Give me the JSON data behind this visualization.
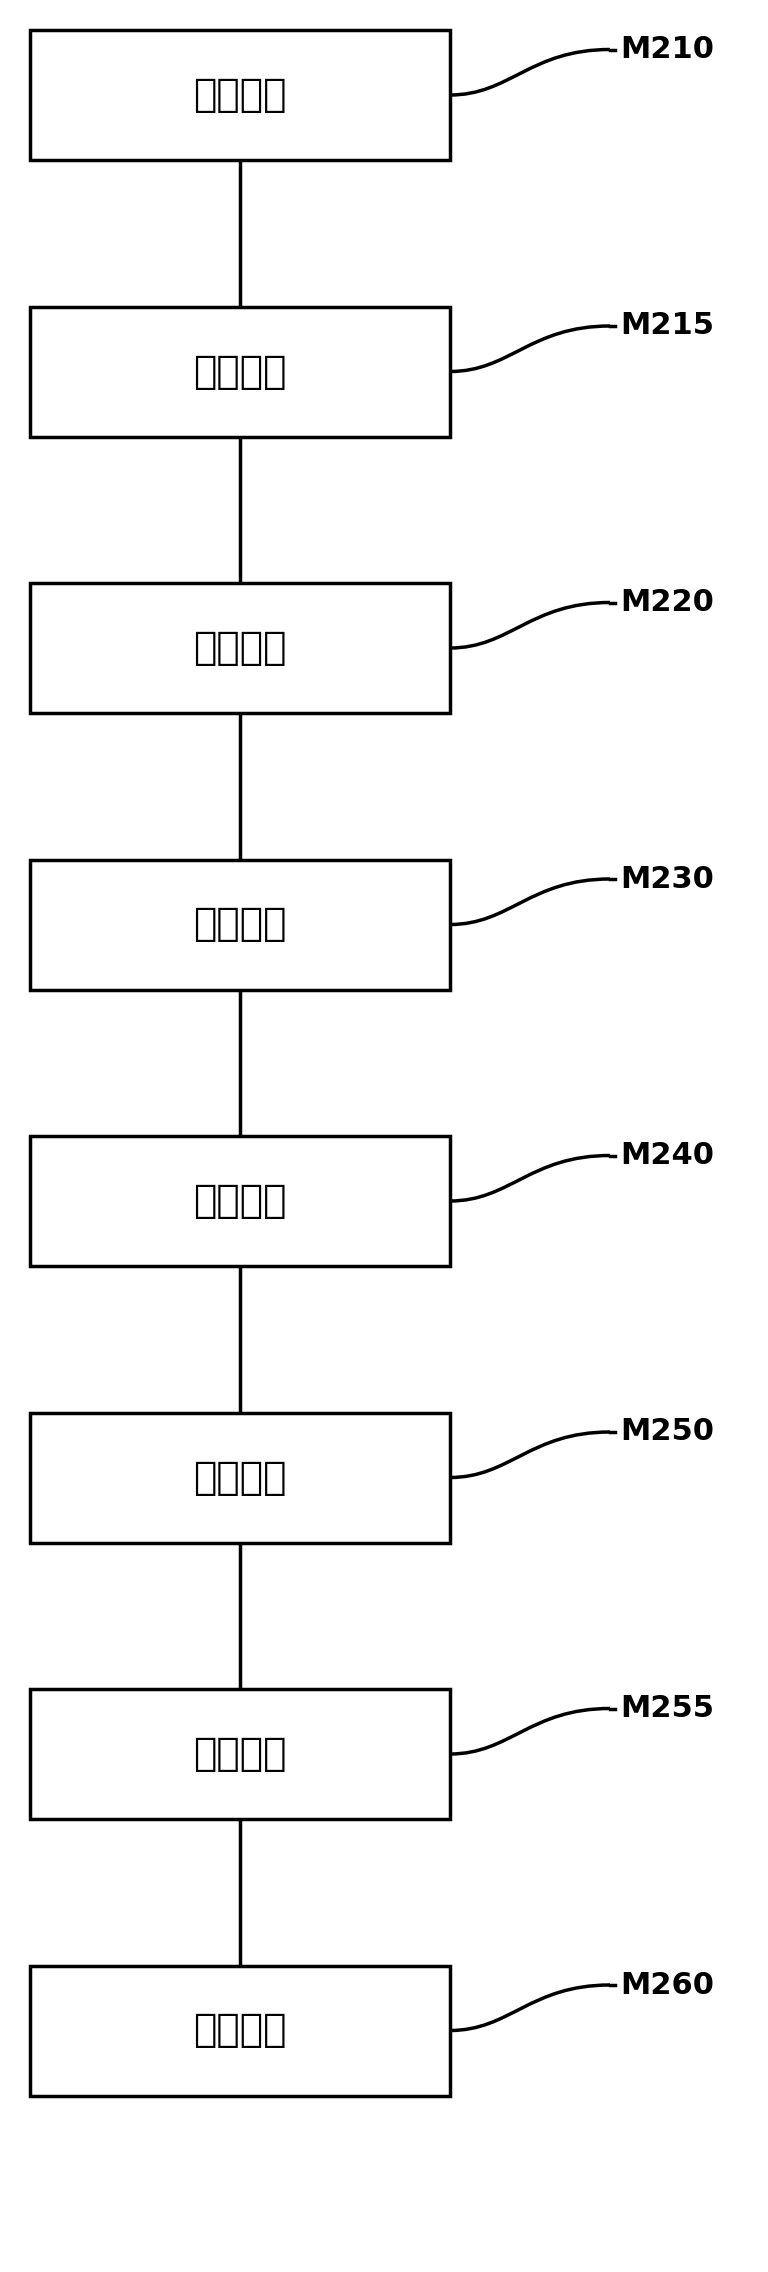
{
  "boxes": [
    {
      "label": "加载模块",
      "tag": "M210"
    },
    {
      "label": "叠加模块",
      "tag": "M215"
    },
    {
      "label": "生成模块",
      "tag": "M220"
    },
    {
      "label": "传送模块",
      "tag": "M230"
    },
    {
      "label": "相乘模块",
      "tag": "M240"
    },
    {
      "label": "滤波模块",
      "tag": "M250"
    },
    {
      "label": "开关模块",
      "tag": "M255"
    },
    {
      "label": "获取模块",
      "tag": "M260"
    }
  ],
  "background_color": "#ffffff",
  "box_edgecolor": "#000000",
  "text_color": "#000000",
  "line_color": "#000000"
}
